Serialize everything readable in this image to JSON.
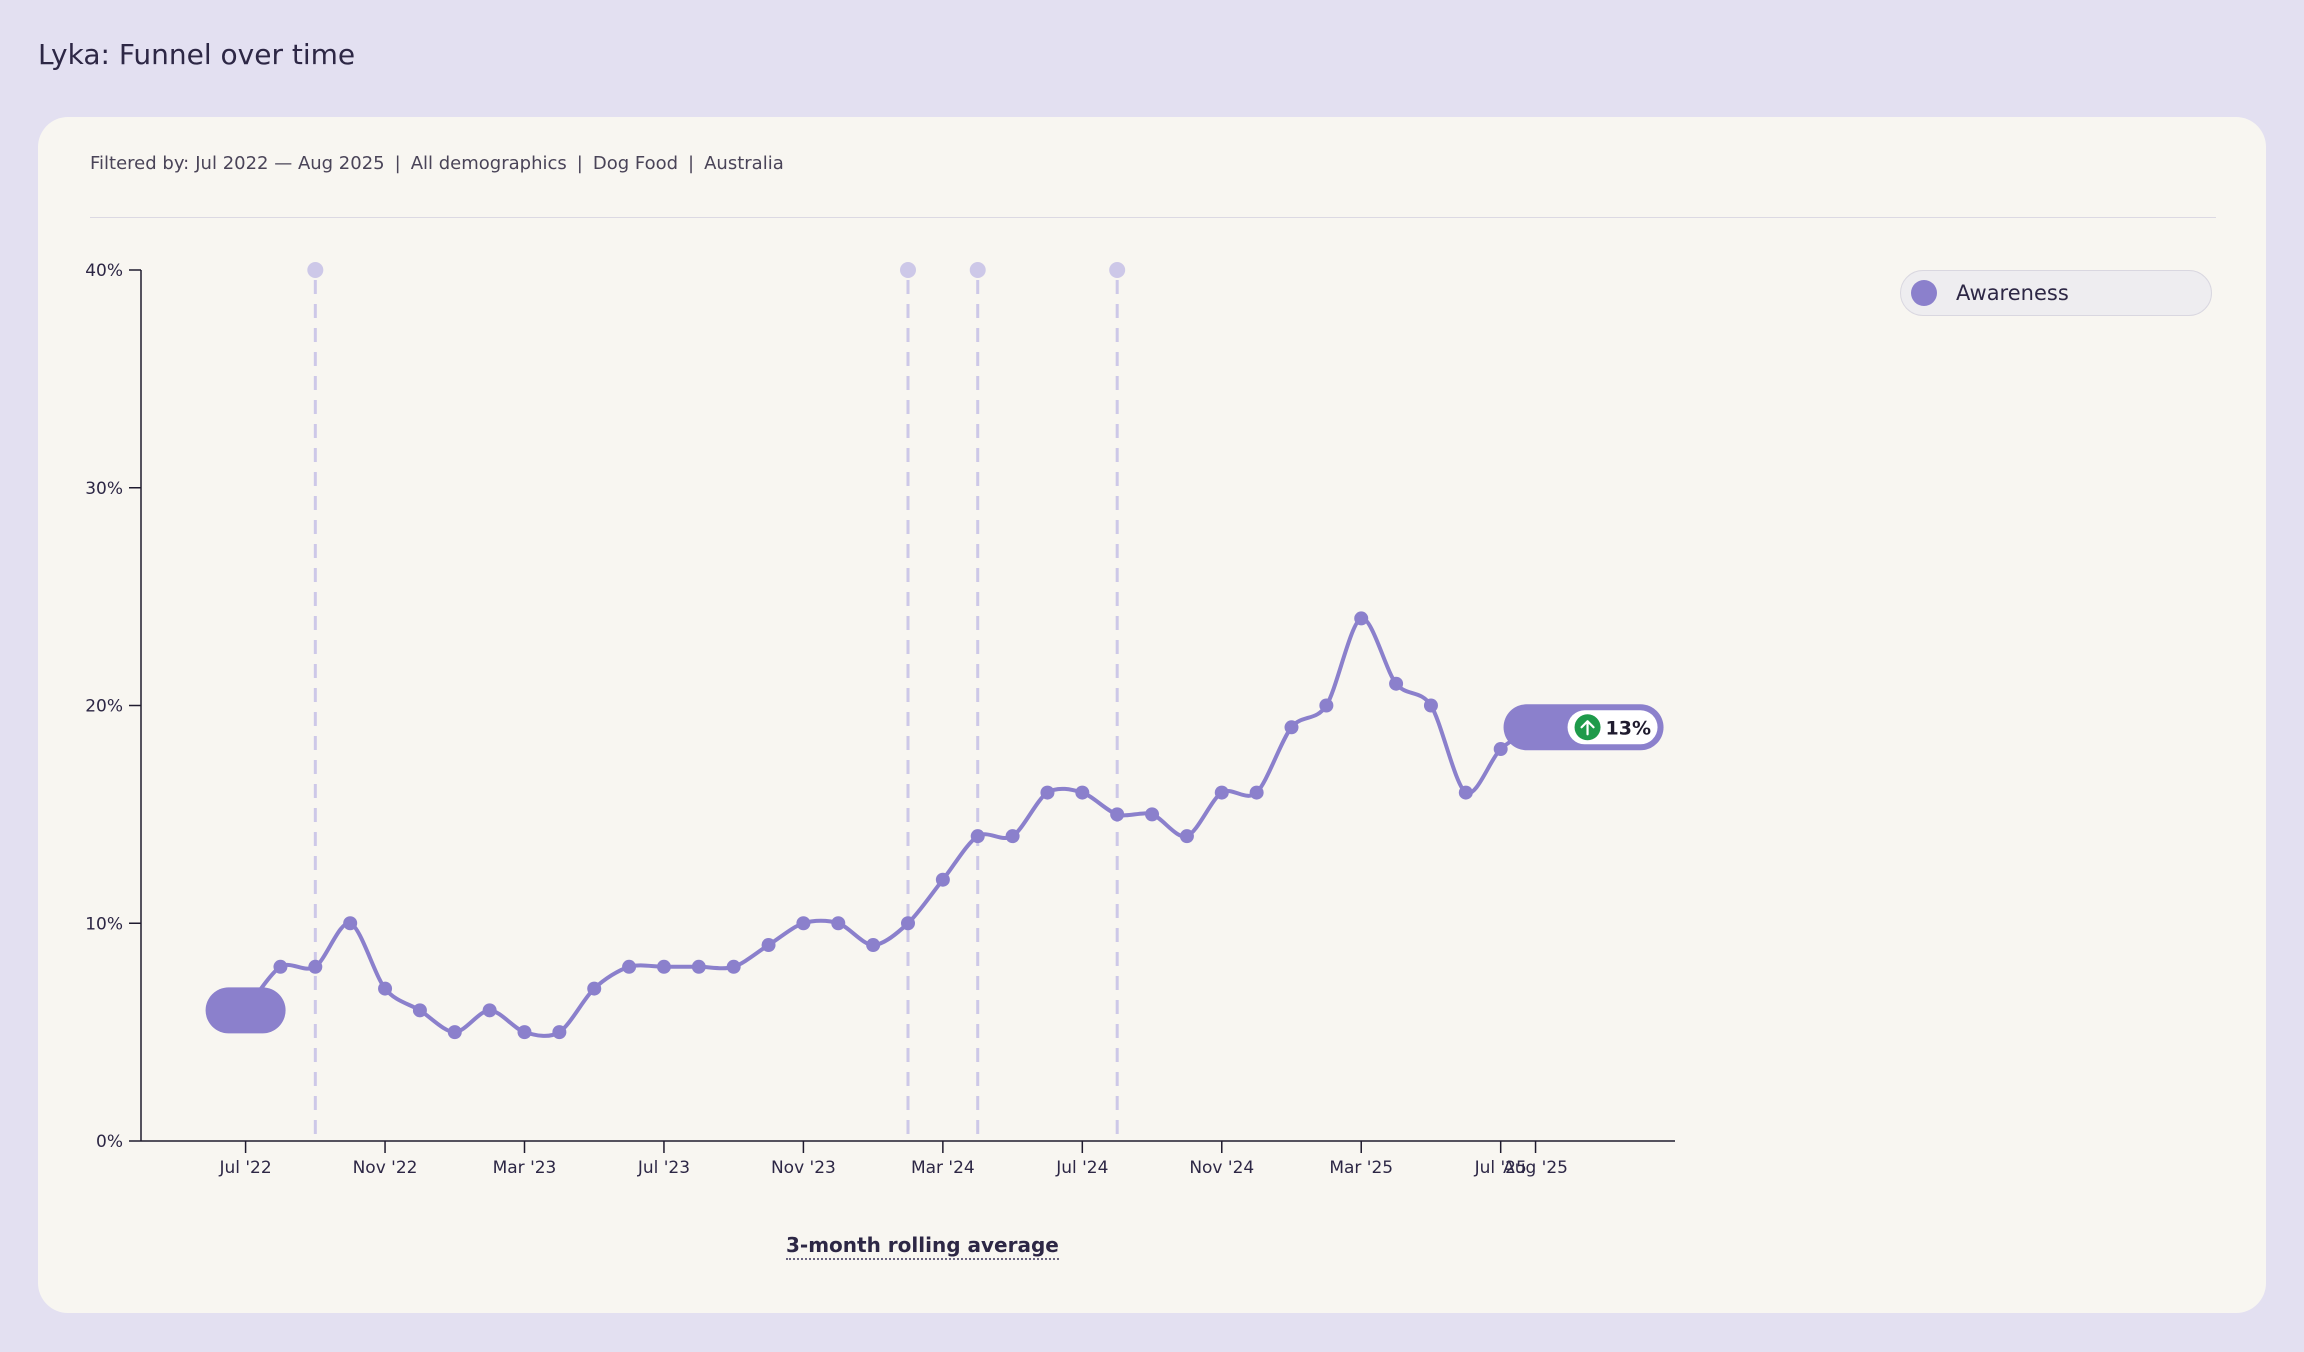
{
  "page": {
    "title": "Lyka: Funnel over time"
  },
  "filters": {
    "prefix": "Filtered by:",
    "date_range": "Jul 2022 — Aug 2025",
    "demographics": "All demographics",
    "category": "Dog Food",
    "region": "Australia",
    "separator": "|"
  },
  "legend": {
    "items": [
      {
        "label": "Awareness",
        "color": "#8b80cc"
      }
    ]
  },
  "footnote": "3-month rolling average",
  "change_badge": {
    "value": "13%",
    "direction": "up",
    "icon": "arrow-up-icon",
    "color": "#1e9a4a"
  },
  "colors": {
    "series": "#8b80cc",
    "event_marker": "#cdc8e8",
    "axis": "#1f1b2e"
  },
  "chart_data": {
    "type": "line",
    "series": [
      {
        "name": "Awareness",
        "x": [
          "2022-07",
          "2022-08",
          "2022-09",
          "2022-10",
          "2022-11",
          "2022-12",
          "2023-01",
          "2023-02",
          "2023-03",
          "2023-04",
          "2023-05",
          "2023-06",
          "2023-07",
          "2023-08",
          "2023-09",
          "2023-10",
          "2023-11",
          "2023-12",
          "2024-01",
          "2024-02",
          "2024-03",
          "2024-04",
          "2024-05",
          "2024-06",
          "2024-07",
          "2024-08",
          "2024-09",
          "2024-10",
          "2024-11",
          "2024-12",
          "2025-01",
          "2025-02",
          "2025-03",
          "2025-04",
          "2025-05",
          "2025-06",
          "2025-07",
          "2025-08"
        ],
        "y": [
          6,
          8,
          8,
          10,
          7,
          6,
          5,
          6,
          5,
          5,
          7,
          8,
          8,
          8,
          8,
          9,
          10,
          10,
          9,
          10,
          12,
          14,
          14,
          16,
          16,
          15,
          15,
          14,
          16,
          16,
          19,
          20,
          24,
          21,
          20,
          16,
          18,
          19
        ]
      }
    ],
    "x_tick_labels": [
      {
        "x": "2022-07",
        "label": "Jul '22"
      },
      {
        "x": "2022-11",
        "label": "Nov '22"
      },
      {
        "x": "2023-03",
        "label": "Mar '23"
      },
      {
        "x": "2023-07",
        "label": "Jul '23"
      },
      {
        "x": "2023-11",
        "label": "Nov '23"
      },
      {
        "x": "2024-03",
        "label": "Mar '24"
      },
      {
        "x": "2024-07",
        "label": "Jul '24"
      },
      {
        "x": "2024-11",
        "label": "Nov '24"
      },
      {
        "x": "2025-03",
        "label": "Mar '25"
      },
      {
        "x": "2025-07",
        "label": "Jul '25"
      },
      {
        "x": "2025-08",
        "label": "Aug '25"
      }
    ],
    "y_ticks": [
      0,
      10,
      20,
      30,
      40
    ],
    "y_tick_labels": [
      "0%",
      "10%",
      "20%",
      "30%",
      "40%"
    ],
    "ylim": [
      0,
      40
    ],
    "xlim": [
      "2022-04",
      "2025-12"
    ],
    "event_markers": [
      "2022-09",
      "2024-02",
      "2024-04",
      "2024-08"
    ],
    "grid": false,
    "legend_position": "top-right",
    "xlabel": "",
    "ylabel": "",
    "title": ""
  }
}
